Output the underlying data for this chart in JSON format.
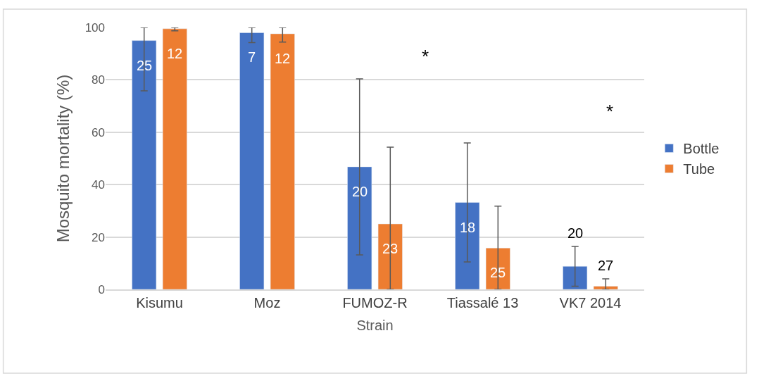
{
  "chart_data": {
    "type": "bar",
    "xlabel": "Strain",
    "ylabel": "Mosquito mortality (%)",
    "categories": [
      "Kisumu",
      "Moz",
      "FUMOZ-R",
      "Tiassalé 13",
      "VK7 2014"
    ],
    "series": [
      {
        "name": "Bottle",
        "color": "#4472c4",
        "values": [
          95,
          98,
          46.8,
          33.2,
          8.8
        ],
        "errors": [
          [
            75.8,
            100
          ],
          [
            94.2,
            100
          ],
          33.6,
          22.7,
          7.6
        ]
      },
      {
        "name": "Tube",
        "color": "#ed7d31",
        "values": [
          99.5,
          97.6,
          25,
          15.8,
          1.2
        ],
        "errors": [
          [
            98.7,
            100
          ],
          [
            94.4,
            100
          ],
          [
            0,
            54.3
          ],
          [
            0,
            31.8
          ],
          [
            0,
            4
          ]
        ]
      }
    ],
    "ylim": [
      0,
      100
    ],
    "yticks": [
      0,
      20,
      40,
      60,
      80,
      100
    ],
    "grid": "y",
    "legend": "right",
    "annotations": [
      "*",
      "*",
      "25",
      "7",
      "20",
      "18",
      "20",
      "12",
      "12",
      "23",
      "25",
      "27"
    ]
  }
}
